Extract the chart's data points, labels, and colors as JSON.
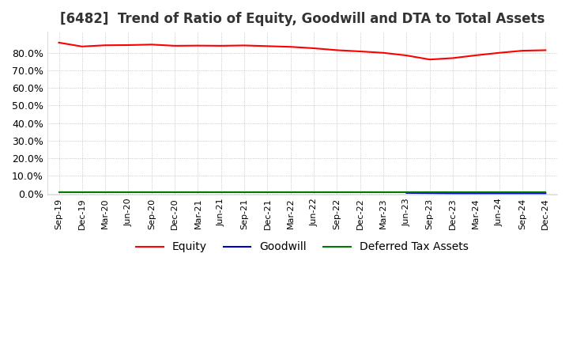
{
  "title": "[6482]  Trend of Ratio of Equity, Goodwill and DTA to Total Assets",
  "title_fontsize": 12,
  "ylim": [
    -0.005,
    0.92
  ],
  "yticks": [
    0.0,
    0.1,
    0.2,
    0.3,
    0.4,
    0.5,
    0.6,
    0.7,
    0.8
  ],
  "ytick_labels": [
    "0.0%",
    "10.0%",
    "20.0%",
    "30.0%",
    "40.0%",
    "50.0%",
    "60.0%",
    "70.0%",
    "80.0%"
  ],
  "x_labels": [
    "Sep-19",
    "Dec-19",
    "Mar-20",
    "Jun-20",
    "Sep-20",
    "Dec-20",
    "Mar-21",
    "Jun-21",
    "Sep-21",
    "Dec-21",
    "Mar-22",
    "Jun-22",
    "Sep-22",
    "Dec-22",
    "Mar-23",
    "Jun-23",
    "Sep-23",
    "Dec-23",
    "Mar-24",
    "Jun-24",
    "Sep-24",
    "Dec-24"
  ],
  "equity": [
    0.858,
    0.836,
    0.843,
    0.844,
    0.847,
    0.84,
    0.841,
    0.84,
    0.842,
    0.838,
    0.834,
    0.826,
    0.815,
    0.808,
    0.8,
    0.785,
    0.762,
    0.77,
    0.786,
    0.8,
    0.812,
    0.815
  ],
  "goodwill": [
    null,
    null,
    null,
    null,
    null,
    null,
    null,
    null,
    null,
    null,
    null,
    null,
    null,
    null,
    null,
    0.003,
    0.002,
    0.001,
    0.001,
    0.001,
    0.001,
    0.001
  ],
  "dta": [
    0.007,
    0.007,
    0.007,
    0.007,
    0.007,
    0.007,
    0.007,
    0.007,
    0.007,
    0.007,
    0.007,
    0.007,
    0.007,
    0.007,
    0.007,
    0.007,
    0.007,
    0.007,
    0.007,
    0.007,
    0.007,
    0.007
  ],
  "equity_color": "#ff0000",
  "goodwill_color": "#0000cc",
  "dta_color": "#007700",
  "bg_color": "#ffffff",
  "plot_bg_color": "#ffffff",
  "grid_color": "#aaaaaa",
  "legend_labels": [
    "Equity",
    "Goodwill",
    "Deferred Tax Assets"
  ]
}
